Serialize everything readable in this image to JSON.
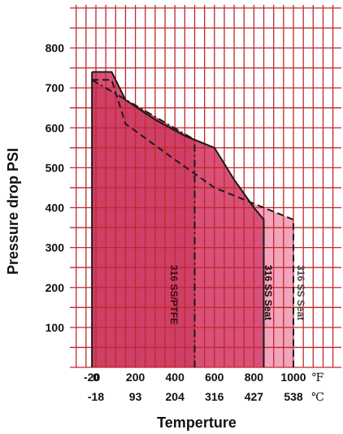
{
  "chart_data": {
    "type": "area",
    "xlabel": "Temperture",
    "ylabel": "Pressure drop PSI",
    "xlim": [
      -20,
      1060
    ],
    "ylim": [
      0,
      900
    ],
    "y_ticks": [
      100,
      200,
      300,
      400,
      500,
      600,
      700,
      800
    ],
    "x_ticks_f": [
      "-20",
      "0",
      "200",
      "400",
      "600",
      "800",
      "1000"
    ],
    "x_ticks_f_values": [
      -20,
      0,
      200,
      400,
      600,
      800,
      1000
    ],
    "x_ticks_c": [
      "-18",
      "93",
      "204",
      "316",
      "427",
      "538"
    ],
    "x_ticks_c_values": [
      0,
      200,
      400,
      600,
      800,
      1000
    ],
    "unit_f": "℉",
    "unit_c": "℃",
    "grid": true,
    "grid_color": "#c0282e",
    "series": [
      {
        "name": "316 SS/PTFE",
        "line_style": "dash-dot",
        "fill": "#cf3f66",
        "points": [
          [
            -20,
            720
          ],
          [
            500,
            570
          ],
          [
            500,
            0
          ]
        ]
      },
      {
        "name": "316 SS Seat",
        "line_style": "solid",
        "fill": "#d95078",
        "points": [
          [
            -20,
            740
          ],
          [
            80,
            740
          ],
          [
            150,
            670
          ],
          [
            300,
            620
          ],
          [
            450,
            580
          ],
          [
            600,
            550
          ],
          [
            700,
            470
          ],
          [
            800,
            400
          ],
          [
            850,
            370
          ],
          [
            850,
            0
          ]
        ]
      },
      {
        "name": "316 SS Seat",
        "line_style": "dashed",
        "fill": "#f1a4bb",
        "points": [
          [
            -20,
            720
          ],
          [
            80,
            720
          ],
          [
            150,
            610
          ],
          [
            400,
            520
          ],
          [
            600,
            450
          ],
          [
            800,
            410
          ],
          [
            1000,
            370
          ],
          [
            1000,
            0
          ]
        ]
      }
    ]
  }
}
